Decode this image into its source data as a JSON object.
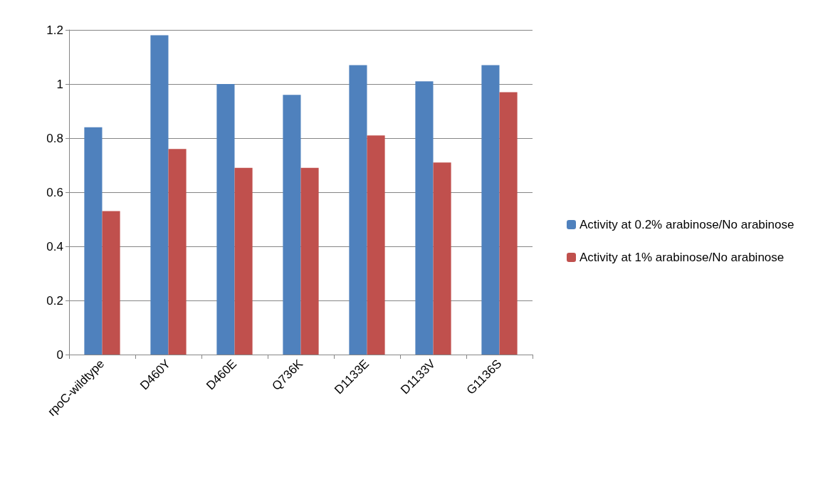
{
  "chart_data": {
    "type": "bar",
    "categories": [
      "rpoC-wildtype",
      "D460Y",
      "D460E",
      "Q736K",
      "D1133E",
      "D1133V",
      "G1136S"
    ],
    "series": [
      {
        "name": "Activity at 0.2% arabinose/No arabinose",
        "color": "#4f81bd",
        "values": [
          0.84,
          1.18,
          1.0,
          0.96,
          1.07,
          1.01,
          1.07
        ]
      },
      {
        "name": "Activity at 1% arabinose/No arabinose",
        "color": "#c0504d",
        "values": [
          0.53,
          0.76,
          0.69,
          0.69,
          0.81,
          0.71,
          0.97
        ]
      }
    ],
    "ylim": [
      0,
      1.2
    ],
    "yticks": [
      0,
      0.2,
      0.4,
      0.6,
      0.8,
      1,
      1.2
    ],
    "grid": "y",
    "legend": "right"
  }
}
